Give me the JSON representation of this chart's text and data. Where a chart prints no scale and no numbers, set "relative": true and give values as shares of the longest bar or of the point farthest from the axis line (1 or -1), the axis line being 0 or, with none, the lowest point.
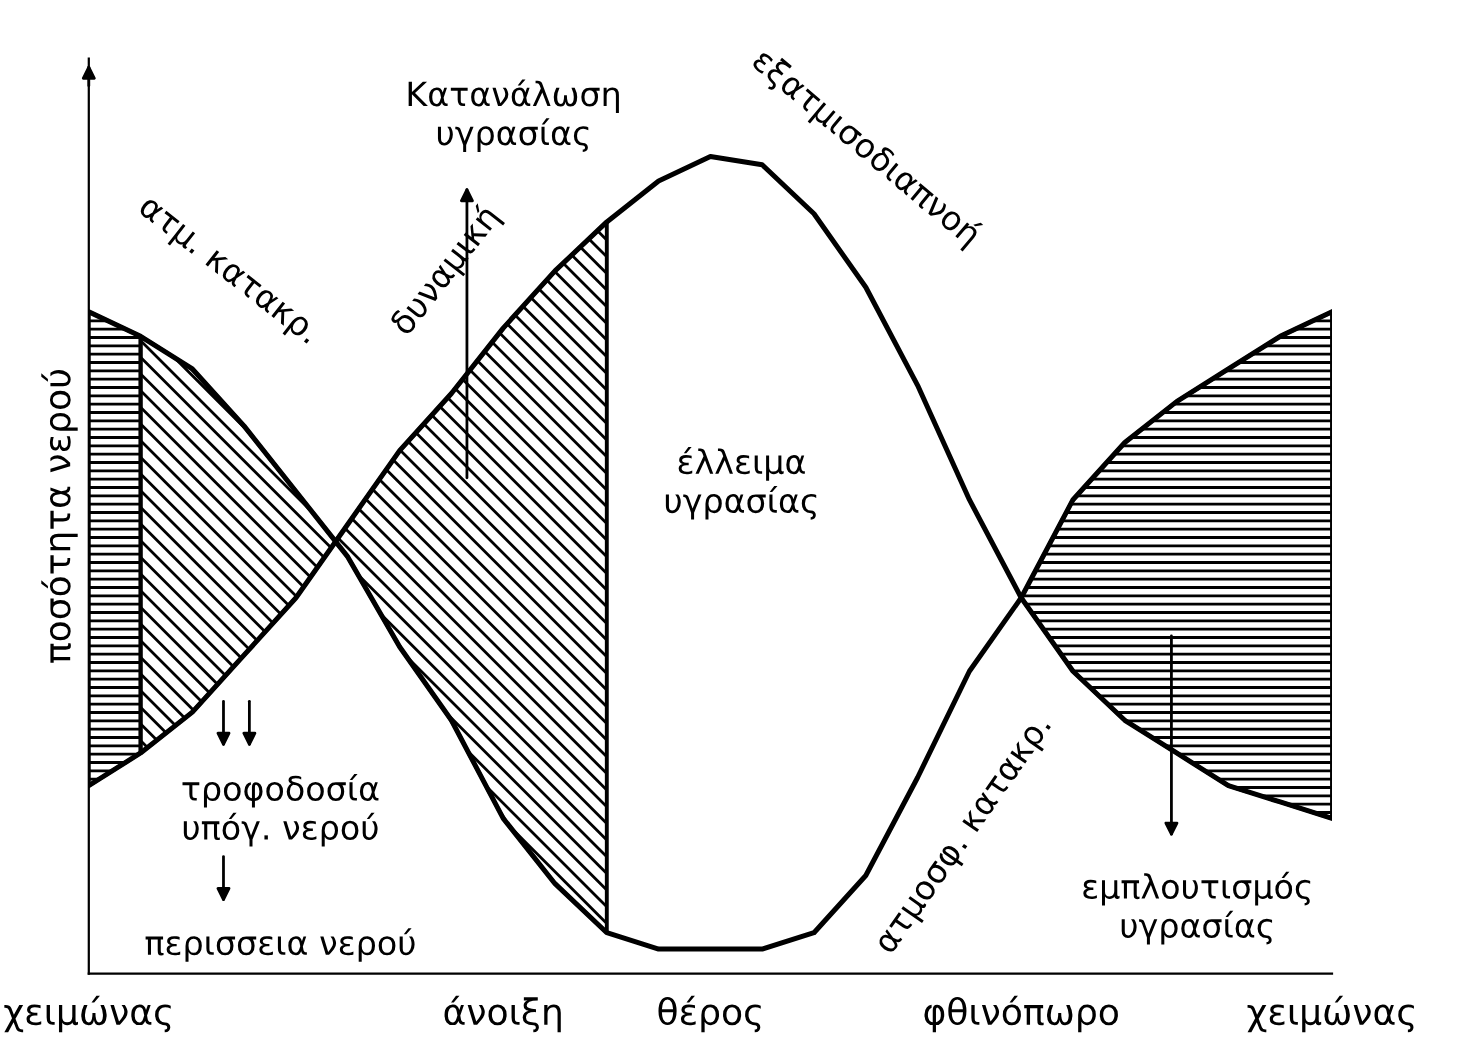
{
  "chart_data": {
    "type": "line",
    "relative": true,
    "ylabel": "ποσότητα νερού",
    "categories": [
      "χειμώνας",
      null,
      null,
      null,
      null,
      null,
      null,
      null,
      "άνοιξη",
      null,
      null,
      null,
      "θέρος",
      null,
      null,
      null,
      null,
      null,
      "φθινόπωρο",
      null,
      null,
      null,
      null,
      null,
      "χειμώνας"
    ],
    "tick_labels": "x",
    "grid": false,
    "marker": "none",
    "line_style": "solid",
    "series": [
      {
        "color": "#000000",
        "values": [
          0.81,
          0.78,
          0.74,
          0.67,
          0.59,
          0.51,
          0.4,
          0.31,
          0.19,
          0.11,
          0.05,
          0.03,
          0.03,
          0.03,
          0.05,
          0.12,
          0.24,
          0.37,
          0.46,
          0.58,
          0.65,
          0.7,
          0.74,
          0.78,
          0.81
        ]
      },
      {
        "color": "#000000",
        "values": [
          0.23,
          0.27,
          0.32,
          0.39,
          0.46,
          0.55,
          0.64,
          0.71,
          0.79,
          0.86,
          0.92,
          0.97,
          1.0,
          0.99,
          0.93,
          0.84,
          0.72,
          0.58,
          0.46,
          0.37,
          0.31,
          0.27,
          0.23,
          0.21,
          0.19
        ]
      }
    ],
    "annotations": [
      "ατμ. κατακρ.",
      "δυναμική",
      "εξατμισοδιαπνοή",
      "ατμοσφ. κατακρ.",
      "Κατανάλωση\nυγρασίας",
      "έλλειμα\nυγρασίας",
      "τροφοδοσία\nυπόγ. νερού",
      "περισσεια νερού",
      "εμπλουτισμός\nυγρασίας"
    ]
  }
}
